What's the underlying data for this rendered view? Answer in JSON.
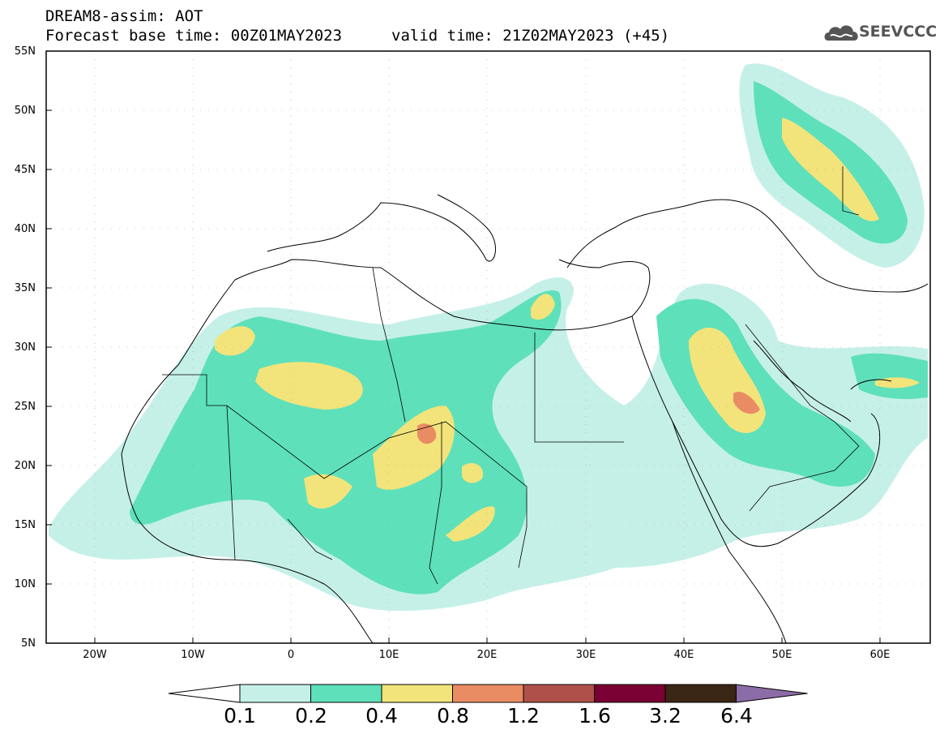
{
  "header": {
    "line1": "DREAM8-assim: AOT",
    "line2": "Forecast base time: 00Z01MAY2023",
    "valid": "valid time: 21Z02MAY2023 (+45)"
  },
  "logo": {
    "text": "SEEVCCC"
  },
  "map": {
    "lat_labels": [
      "55N",
      "50N",
      "45N",
      "40N",
      "35N",
      "30N",
      "25N",
      "20N",
      "15N",
      "10N",
      "5N"
    ],
    "lon_labels": [
      "20W",
      "10W",
      "0",
      "10E",
      "20E",
      "30E",
      "40E",
      "50E",
      "60E"
    ],
    "extent": {
      "lon": [
        -25,
        65
      ],
      "lat": [
        5,
        55
      ]
    }
  },
  "colorbar": {
    "colors": [
      "#ffffff",
      "#c5f0e8",
      "#5ee0bb",
      "#f2e47a",
      "#e98c64",
      "#b0504a",
      "#7a0033",
      "#3a2614",
      "#8c6ca6"
    ],
    "labels": [
      "0.1",
      "0.2",
      "0.4",
      "0.8",
      "1.2",
      "1.6",
      "3.2",
      "6.4"
    ]
  }
}
